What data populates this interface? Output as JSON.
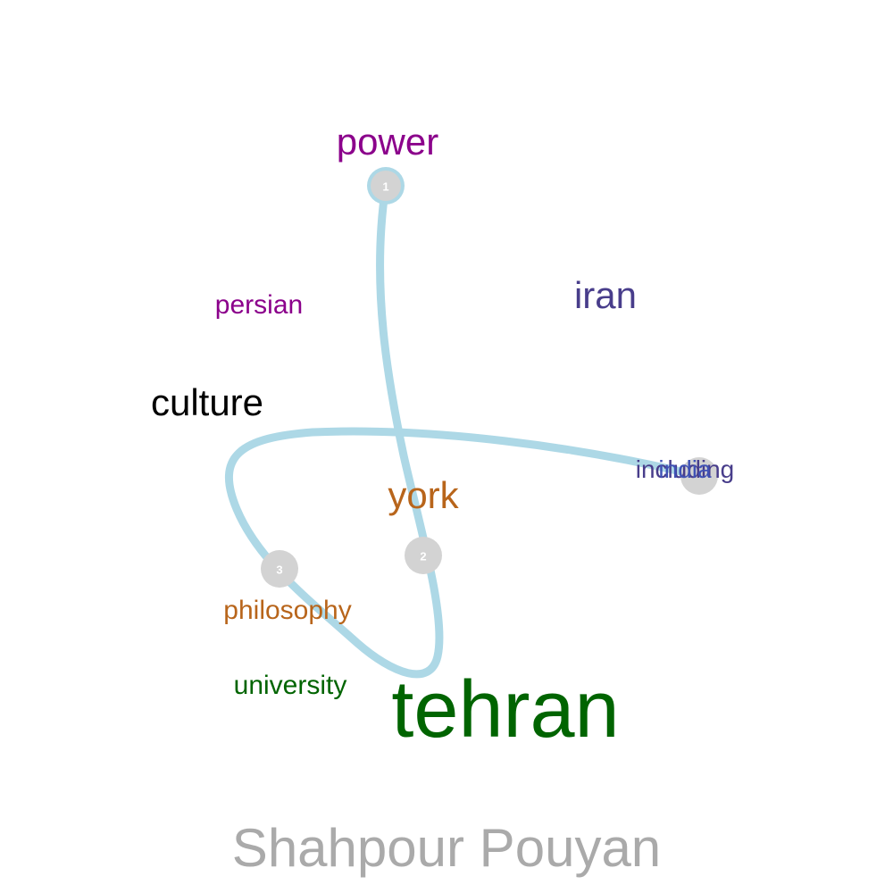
{
  "title": "Shahpour Pouyan",
  "colors": {
    "path": "#add8e6",
    "node": "#d3d3d3",
    "title": "#aaaaaa"
  },
  "words": [
    {
      "text": "power",
      "color": "#8b008b"
    },
    {
      "text": "persian",
      "color": "#8b008b"
    },
    {
      "text": "iran",
      "color": "#483d8b"
    },
    {
      "text": "culture",
      "color": "#000000"
    },
    {
      "text": "including",
      "color": "#483d8b"
    },
    {
      "text": "india",
      "color": "#3f51b5"
    },
    {
      "text": "york",
      "color": "#b8651b"
    },
    {
      "text": "philosophy",
      "color": "#b8651b"
    },
    {
      "text": "university",
      "color": "#006400"
    },
    {
      "text": "tehran",
      "color": "#006400"
    }
  ],
  "nodes": [
    {
      "label": "1"
    },
    {
      "label": "2"
    },
    {
      "label": "3"
    },
    {
      "label": ""
    }
  ]
}
